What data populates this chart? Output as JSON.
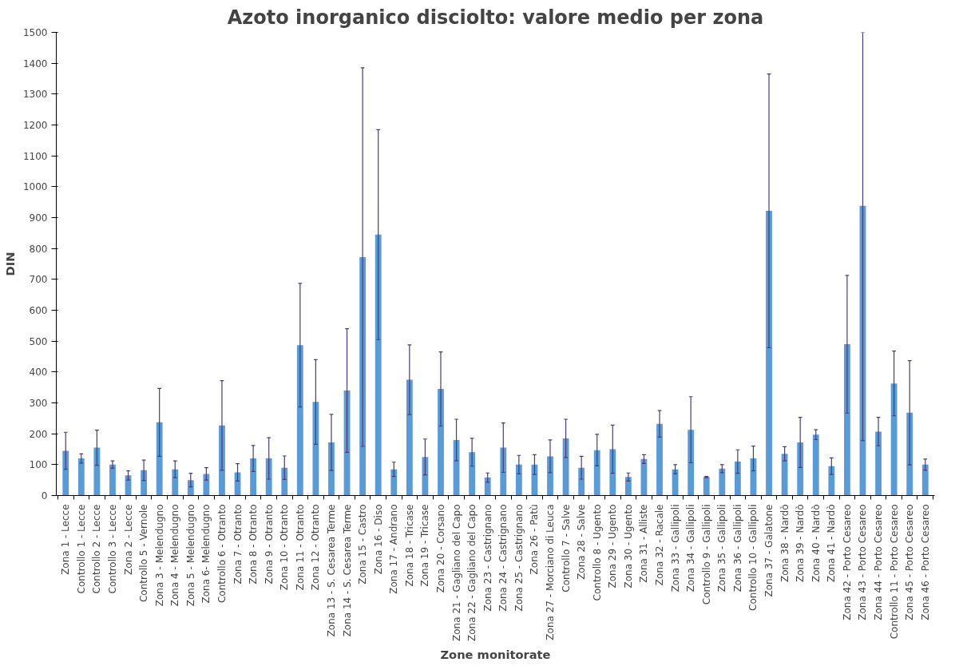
{
  "chart_data": {
    "type": "bar",
    "title": "Azoto inorganico disciolto: valore medio per zona",
    "xlabel": "Zone monitorate",
    "ylabel": "DIN",
    "categories": [
      "Zona 1 - Lecce",
      "Controllo 1 - Lecce",
      "Controllo 2 - Lecce",
      "Controllo 3 - Lecce",
      "Zona 2 - Lecce",
      "Controllo 5 - Vernole",
      "Zona 3 - Melendugno",
      "Zona 4 - Melendugno",
      "Zona 5 - Melendugno",
      "Zona 6- Melendugno",
      "Controllo 6 - Otranto",
      "Zona 7 - Otranto",
      "Zona 8 - Otranto",
      "Zona 9 - Otranto",
      "Zona 10 - Otranto",
      "Zona 11 - Otranto",
      "Zona 12 - Otranto",
      "Zona 13 - S. Cesarea Terme",
      "Zona 14 - S. Cesarea Terme",
      "Zona 15 - Castro",
      "Zona 16 - Diso",
      "Zona 17 - Andrano",
      "Zona 18 - Tricase",
      "Zona 19 - Tricase",
      "Zona 20 - Corsano",
      "Zona 21 - Gagliano del Capo",
      "Zona 22 - Gagliano del Capo",
      "Zona 23 - Castrignano",
      "Zona 24 - Castrignano",
      "Zona 25 - Castrignano",
      "Zona 26 - Patù",
      "Zona 27 - Morciano di Leuca",
      "Controllo 7 - Salve",
      "Zona 28 - Salve",
      "Controllo 8 - Ugento",
      "Zona 29 - Ugento",
      "Zona 30 - Ugento",
      "Zona 31 - Alliste",
      "Zona 32 - Racale",
      "Zona 33 - Gallipoli",
      "Zona 34 - Gallipoli",
      "Controllo 9 - Gallipoli",
      "Zona 35 - Gallipoli",
      "Zona 36 - Gallipoli",
      "Controllo 10 - Gallipoli",
      "Zona 37 - Galatone",
      "Zona 38 - Nardò",
      "Zona 39 - Nardò",
      "Zona 40 - Nardò",
      "Zona 41 - Nardò",
      "Zona 42 - Porto Cesareo",
      "Zona 43 - Porto Cesareo",
      "Zona 44 - Porto Cesareo",
      "Controllo 11 - Porto Cesareo",
      "Zona 45 - Porto Cesareo",
      "Zona 46 - Porto Cesareo"
    ],
    "values": [
      145,
      120,
      155,
      100,
      65,
      82,
      237,
      85,
      50,
      70,
      227,
      75,
      120,
      120,
      90,
      487,
      303,
      172,
      340,
      772,
      845,
      85,
      375,
      125,
      345,
      180,
      140,
      58,
      155,
      100,
      100,
      127,
      185,
      90,
      147,
      150,
      60,
      118,
      232,
      85,
      213,
      60,
      87,
      110,
      120,
      922,
      135,
      172,
      197,
      95,
      490,
      938,
      207,
      363,
      268,
      100
    ],
    "errors": [
      60,
      15,
      57,
      12,
      15,
      33,
      110,
      27,
      22,
      20,
      145,
      28,
      42,
      67,
      38,
      200,
      137,
      91,
      200,
      613,
      340,
      23,
      113,
      58,
      120,
      67,
      45,
      15,
      80,
      30,
      32,
      53,
      62,
      37,
      51,
      78,
      13,
      14,
      43,
      15,
      107,
      2,
      13,
      38,
      40,
      443,
      23,
      81,
      16,
      27,
      223,
      [
        178,
        1500
      ],
      46,
      105,
      169,
      18
    ],
    "color": "#5b9bd5",
    "ylim": [
      0,
      1500
    ],
    "yticks": [
      0,
      100,
      200,
      300,
      400,
      500,
      600,
      700,
      800,
      900,
      1000,
      1100,
      1200,
      1300,
      1400,
      1500
    ],
    "grid": false
  }
}
